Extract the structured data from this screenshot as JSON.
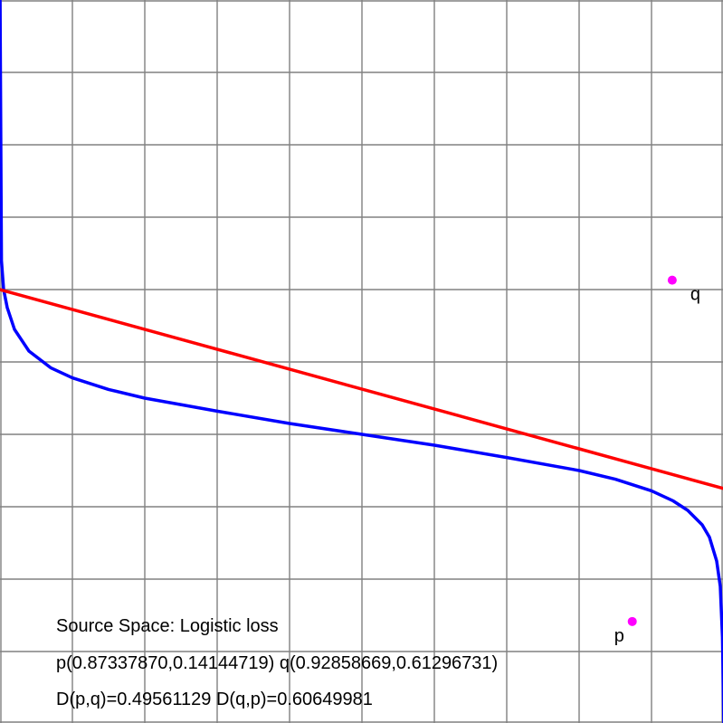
{
  "chart_data": {
    "type": "line",
    "title": "Source Space: Logistic loss",
    "xlabel": "",
    "ylabel": "",
    "xlim": [
      0,
      1
    ],
    "ylim": [
      0,
      1
    ],
    "grid": true,
    "grid_divisions": 10,
    "series": [
      {
        "kind": "logistic-curve",
        "color": "#0000ff",
        "x": [
          0.0001,
          0.002,
          0.005,
          0.01,
          0.02,
          0.04,
          0.07,
          0.1,
          0.15,
          0.2,
          0.3,
          0.4,
          0.5,
          0.6,
          0.7,
          0.8,
          0.85,
          0.9,
          0.93,
          0.95,
          0.97,
          0.98,
          0.99,
          0.995,
          0.998,
          0.9999
        ],
        "y": [
          0.999,
          0.64,
          0.6,
          0.575,
          0.545,
          0.515,
          0.492,
          0.478,
          0.462,
          0.45,
          0.432,
          0.415,
          0.4,
          0.385,
          0.368,
          0.35,
          0.338,
          0.322,
          0.308,
          0.295,
          0.275,
          0.258,
          0.225,
          0.19,
          0.12,
          0.0
        ]
      },
      {
        "kind": "tangent-line",
        "color": "#ff0000",
        "x": [
          0,
          1
        ],
        "y": [
          0.6,
          0.325
        ]
      }
    ],
    "points": [
      {
        "label": "p",
        "x": 0.8733787,
        "y": 0.14144719,
        "color": "#ff00ff"
      },
      {
        "label": "q",
        "x": 0.92858669,
        "y": 0.61296731,
        "color": "#ff00ff"
      }
    ],
    "annotations": {
      "line1": "Source Space: Logistic loss",
      "line2": "p(0.87337870,0.14144719) q(0.92858669,0.61296731)",
      "line3": "D(p,q)=0.49561129  D(q,p)=0.60649981"
    }
  }
}
